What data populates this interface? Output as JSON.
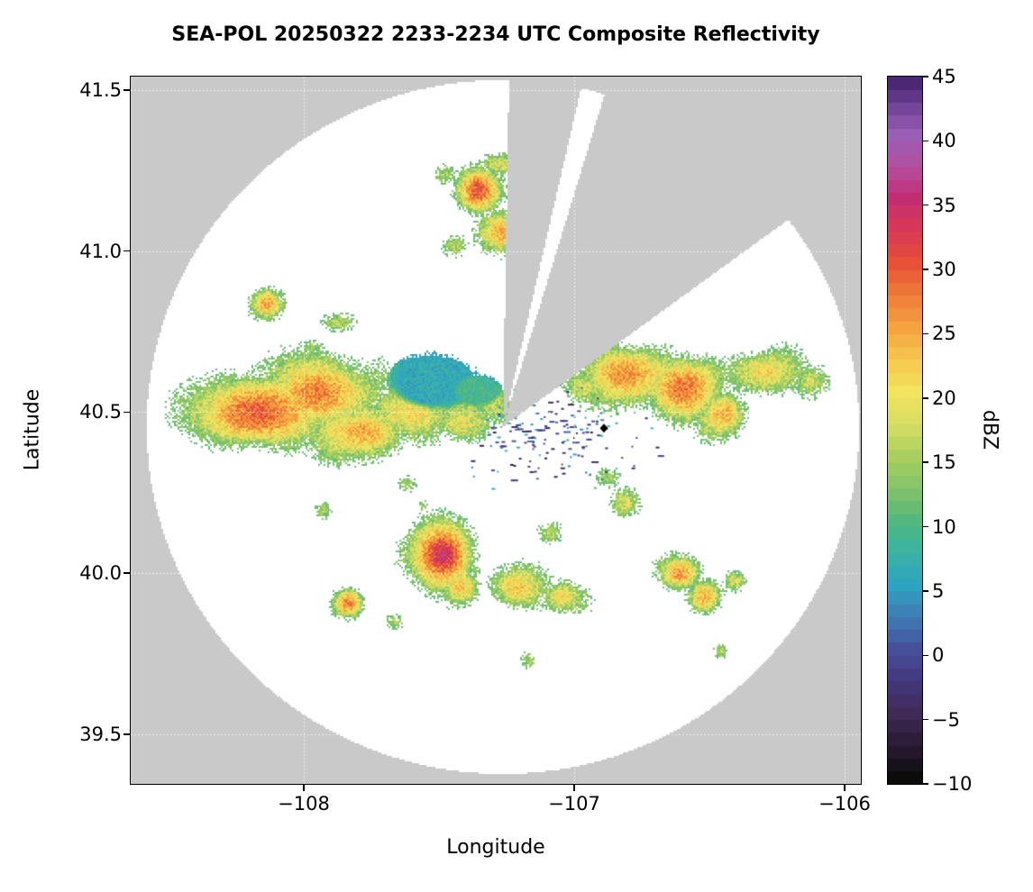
{
  "figure": {
    "title": "SEA-POL 20250322 2233-2234 UTC Composite Reflectivity"
  },
  "chart_data": {
    "type": "heatmap",
    "title": "SEA-POL 20250322 2233-2234 UTC Composite Reflectivity",
    "xlabel": "Longitude",
    "ylabel": "Latitude",
    "xlim": [
      -108.64,
      -105.94
    ],
    "ylim": [
      39.346,
      41.542
    ],
    "xticks": [
      -108,
      -107,
      -106
    ],
    "xtick_labels": [
      "−108",
      "−107",
      "−106"
    ],
    "yticks": [
      39.5,
      40.0,
      40.5,
      41.0,
      41.5
    ],
    "ytick_labels": [
      "39.5",
      "40.0",
      "40.5",
      "41.0",
      "41.5"
    ],
    "grid": true,
    "grid_color": "rgba(255,255,255,0.85)",
    "background_outside_scan": "#c9c9c9",
    "background_inside_scan": "#ffffff",
    "colorbar": {
      "label": "dBZ",
      "min": -10,
      "max": 45,
      "ticks": [
        45,
        40,
        35,
        30,
        25,
        20,
        15,
        10,
        5,
        0,
        -5,
        -10
      ],
      "tick_labels": [
        "45",
        "40",
        "35",
        "30",
        "25",
        "20",
        "15",
        "10",
        "5",
        "0",
        "−5",
        "−10"
      ],
      "colormap": "spectral-reflectivity",
      "stops": [
        [
          -10,
          "#0b0b0b"
        ],
        [
          -7.5,
          "#2a1a33"
        ],
        [
          -5,
          "#3f2b56"
        ],
        [
          -2.5,
          "#45377c"
        ],
        [
          0,
          "#474f9b"
        ],
        [
          2.5,
          "#3f7cb5"
        ],
        [
          5,
          "#2fa3c2"
        ],
        [
          7.5,
          "#3bb3a4"
        ],
        [
          10,
          "#52b87d"
        ],
        [
          12.5,
          "#84c46b"
        ],
        [
          15,
          "#aacf5f"
        ],
        [
          17.5,
          "#d8de66"
        ],
        [
          20,
          "#f2e45f"
        ],
        [
          22.5,
          "#f6c84e"
        ],
        [
          25,
          "#f4a33f"
        ],
        [
          27.5,
          "#ef7d3a"
        ],
        [
          30,
          "#e75136"
        ],
        [
          32.5,
          "#d93a55"
        ],
        [
          35,
          "#c22d72"
        ],
        [
          37.5,
          "#b44f9e"
        ],
        [
          40,
          "#9a5fb5"
        ],
        [
          42.5,
          "#6b3f93"
        ],
        [
          45,
          "#38175e"
        ]
      ]
    },
    "radar": {
      "center": [
        -107.267,
        40.457
      ],
      "radius_lon_deg": 1.317,
      "radius_lat_deg": 1.077,
      "blocked_sectors_deg_from_north": [
        [
          1,
          13
        ],
        [
          17,
          54
        ]
      ]
    },
    "marker": {
      "shape": "diamond",
      "color": "#000000",
      "lon": -106.89,
      "lat": 40.45
    },
    "echo_cells": [
      [
        -108.17,
        40.5,
        0.3,
        0.13,
        29
      ],
      [
        -107.95,
        40.56,
        0.28,
        0.14,
        27
      ],
      [
        -107.78,
        40.44,
        0.22,
        0.11,
        25
      ],
      [
        -108.3,
        40.47,
        0.12,
        0.08,
        22
      ],
      [
        -107.6,
        40.5,
        0.2,
        0.11,
        21
      ],
      [
        -107.42,
        40.47,
        0.16,
        0.09,
        19
      ],
      [
        -107.3,
        40.53,
        0.12,
        0.08,
        16
      ],
      [
        -106.82,
        40.62,
        0.22,
        0.12,
        26
      ],
      [
        -106.6,
        40.58,
        0.18,
        0.12,
        28
      ],
      [
        -106.45,
        40.5,
        0.12,
        0.1,
        24
      ],
      [
        -106.3,
        40.63,
        0.18,
        0.09,
        21
      ],
      [
        -106.13,
        40.6,
        0.1,
        0.07,
        17
      ],
      [
        -106.97,
        40.58,
        0.1,
        0.07,
        18
      ],
      [
        -107.36,
        41.19,
        0.1,
        0.09,
        30
      ],
      [
        -107.27,
        41.06,
        0.1,
        0.08,
        24
      ],
      [
        -107.44,
        41.02,
        0.07,
        0.05,
        16
      ],
      [
        -107.28,
        41.27,
        0.09,
        0.04,
        18
      ],
      [
        -107.48,
        41.24,
        0.05,
        0.04,
        15
      ],
      [
        -108.14,
        40.84,
        0.08,
        0.06,
        25
      ],
      [
        -107.88,
        40.78,
        0.1,
        0.05,
        16
      ],
      [
        -107.97,
        40.7,
        0.07,
        0.04,
        14
      ],
      [
        -107.49,
        40.06,
        0.13,
        0.11,
        34
      ],
      [
        -107.42,
        39.96,
        0.1,
        0.08,
        22
      ],
      [
        -107.22,
        39.96,
        0.14,
        0.09,
        22
      ],
      [
        -107.05,
        39.93,
        0.12,
        0.08,
        21
      ],
      [
        -106.61,
        40.0,
        0.1,
        0.07,
        26
      ],
      [
        -106.52,
        39.93,
        0.07,
        0.06,
        24
      ],
      [
        -106.41,
        39.98,
        0.07,
        0.05,
        18
      ],
      [
        -107.84,
        39.91,
        0.06,
        0.05,
        27
      ],
      [
        -107.67,
        39.85,
        0.05,
        0.04,
        15
      ],
      [
        -107.93,
        40.2,
        0.05,
        0.04,
        15
      ],
      [
        -107.17,
        39.73,
        0.04,
        0.04,
        14
      ],
      [
        -106.46,
        39.76,
        0.04,
        0.04,
        16
      ],
      [
        -106.88,
        40.3,
        0.07,
        0.05,
        15
      ],
      [
        -106.82,
        40.22,
        0.07,
        0.06,
        18
      ],
      [
        -107.09,
        40.13,
        0.06,
        0.05,
        16
      ],
      [
        -107.62,
        40.28,
        0.05,
        0.04,
        14
      ],
      [
        -107.56,
        40.21,
        0.04,
        0.04,
        13
      ]
    ],
    "low_dbz_patches": [
      [
        -107.52,
        40.6,
        0.17,
        0.09,
        6
      ],
      [
        -107.36,
        40.57,
        0.09,
        0.05,
        9
      ]
    ],
    "clutter_speckles": {
      "count": 160,
      "center": [
        -107.07,
        40.42
      ],
      "spread_lon": 0.3,
      "spread_lat": 0.14,
      "dbz_range": [
        -6,
        9
      ]
    }
  }
}
